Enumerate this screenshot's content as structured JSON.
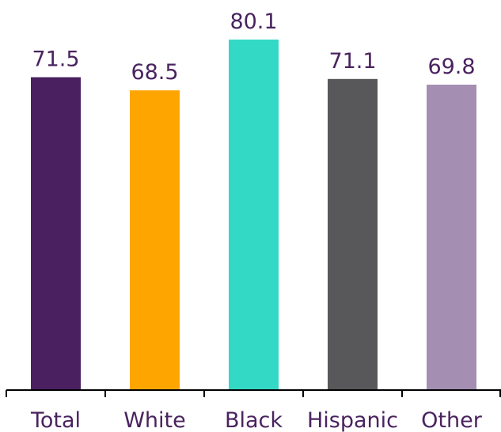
{
  "chart_data": {
    "type": "bar",
    "title": "",
    "xlabel": "",
    "ylabel": "",
    "categories": [
      "Total",
      "White",
      "Black",
      "Hispanic",
      "Other"
    ],
    "values": [
      71.5,
      68.5,
      80.1,
      71.1,
      69.8
    ],
    "value_labels": [
      "71.5",
      "68.5",
      "80.1",
      "71.1",
      "69.8"
    ],
    "colors": [
      "#4a2060",
      "#ffa500",
      "#33d9c4",
      "#58585a",
      "#a48fb2"
    ],
    "label_color": "#4a235f",
    "ylim": [
      0,
      80.1
    ],
    "grid": false,
    "legend": "none"
  }
}
